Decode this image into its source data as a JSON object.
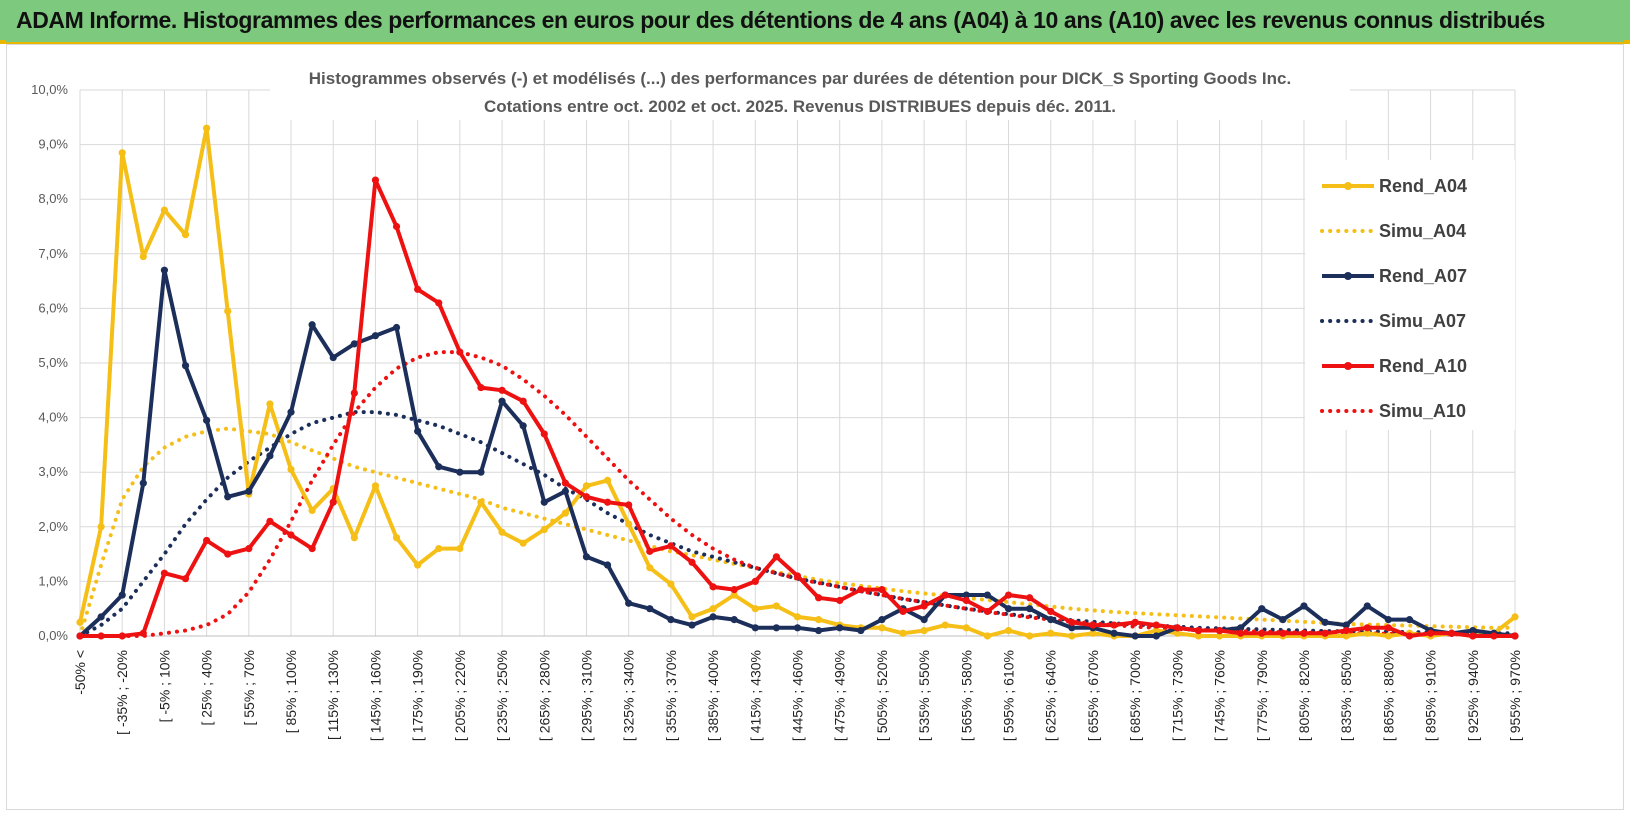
{
  "header": {
    "title": "ADAM Informe. Histogrammes des performances en euros pour des détentions de 4 ans (A04) à 10 ans (A10) avec les revenus connus distribués"
  },
  "colors": {
    "header_bg": "#7dc97e",
    "A04": "#f5bf17",
    "A07": "#1c2e5a",
    "A10": "#ee1111",
    "grid": "#d9d9d9"
  },
  "chart_data": {
    "type": "line",
    "title_lines": [
      "Histogrammes observés (-) et modélisés (...) des performances par durées de détention pour DICK_S Sporting Goods Inc.",
      "Cotations entre oct. 2002 et oct. 2025. Revenus DISTRIBUES depuis déc. 2011."
    ],
    "y_axis": {
      "min": 0,
      "max": 10,
      "step": 1,
      "tick_labels": [
        "0,0%",
        "1,0%",
        "2,0%",
        "3,0%",
        "4,0%",
        "5,0%",
        "6,0%",
        "7,0%",
        "8,0%",
        "9,0%",
        "10,0%"
      ]
    },
    "x_labels": [
      "-50% <",
      "[ -35% ; -20%",
      "[ -5% ; 10%",
      "[ 25% ; 40%",
      "[ 55% ; 70%",
      "[ 85% ; 100%",
      "[ 115% ; 130%",
      "[ 145% ; 160%",
      "[ 175% ; 190%",
      "[ 205% ; 220%",
      "[ 235% ; 250%",
      "[ 265% ; 280%",
      "[ 295% ; 310%",
      "[ 325% ; 340%",
      "[ 355% ; 370%",
      "[ 385% ; 400%",
      "[ 415% ; 430%",
      "[ 445% ; 460%",
      "[ 475% ; 490%",
      "[ 505% ; 520%",
      "[ 535% ; 550%",
      "[ 565% ; 580%",
      "[ 595% ; 610%",
      "[ 625% ; 640%",
      "[ 655% ; 670%",
      "[ 685% ; 700%",
      "[ 715% ; 730%",
      "[ 745% ; 760%",
      "[ 775% ; 790%",
      "[ 805% ; 820%",
      "[ 835% ; 850%",
      "[ 865% ; 880%",
      "[ 895% ; 910%",
      "[ 925% ; 940%",
      "[ 955% ; 970%"
    ],
    "n_bins": 69,
    "grid": true,
    "legend_position": "right",
    "series": [
      {
        "name": "Rend_A04",
        "style": "solid",
        "color": "#f5bf17",
        "values": [
          0.25,
          2.0,
          8.85,
          6.95,
          7.8,
          7.35,
          9.3,
          5.95,
          2.6,
          4.25,
          3.05,
          2.3,
          2.7,
          1.8,
          2.75,
          1.8,
          1.3,
          1.6,
          1.6,
          2.45,
          1.9,
          1.7,
          1.95,
          2.25,
          2.75,
          2.85,
          2.05,
          1.25,
          0.95,
          0.35,
          0.5,
          0.75,
          0.5,
          0.55,
          0.35,
          0.3,
          0.2,
          0.15,
          0.15,
          0.05,
          0.1,
          0.2,
          0.15,
          0.0,
          0.1,
          0.0,
          0.05,
          0.0,
          0.05,
          0.0,
          0.0,
          0.1,
          0.05,
          0.0,
          0.0,
          0.0,
          0.0,
          0.0,
          0.0,
          0.0,
          0.0,
          0.05,
          0.0,
          0.05,
          0.0,
          0.05,
          0.0,
          0.05,
          0.35
        ]
      },
      {
        "name": "Simu_A04",
        "style": "dotted",
        "color": "#f5bf17",
        "values": [
          0.0,
          1.3,
          2.5,
          3.1,
          3.45,
          3.65,
          3.75,
          3.8,
          3.75,
          3.7,
          3.55,
          3.4,
          3.25,
          3.1,
          3.0,
          2.9,
          2.8,
          2.7,
          2.6,
          2.5,
          2.35,
          2.25,
          2.15,
          2.05,
          1.95,
          1.85,
          1.75,
          1.65,
          1.55,
          1.48,
          1.4,
          1.32,
          1.25,
          1.17,
          1.1,
          1.03,
          0.97,
          0.92,
          0.87,
          0.82,
          0.78,
          0.74,
          0.7,
          0.66,
          0.62,
          0.58,
          0.54,
          0.5,
          0.47,
          0.44,
          0.42,
          0.4,
          0.38,
          0.36,
          0.34,
          0.32,
          0.3,
          0.28,
          0.26,
          0.24,
          0.22,
          0.21,
          0.2,
          0.19,
          0.18,
          0.17,
          0.16,
          0.15,
          0.15
        ]
      },
      {
        "name": "Rend_A07",
        "style": "solid",
        "color": "#1c2e5a",
        "values": [
          0.0,
          0.35,
          0.75,
          2.8,
          6.7,
          4.95,
          3.95,
          2.55,
          2.65,
          3.3,
          4.1,
          5.7,
          5.1,
          5.35,
          5.5,
          5.65,
          3.75,
          3.1,
          3.0,
          3.0,
          4.3,
          3.85,
          2.45,
          2.65,
          1.45,
          1.3,
          0.6,
          0.5,
          0.3,
          0.2,
          0.35,
          0.3,
          0.15,
          0.15,
          0.15,
          0.1,
          0.15,
          0.1,
          0.3,
          0.5,
          0.3,
          0.75,
          0.75,
          0.75,
          0.5,
          0.5,
          0.3,
          0.15,
          0.15,
          0.05,
          0.0,
          0.0,
          0.15,
          0.1,
          0.1,
          0.15,
          0.5,
          0.3,
          0.55,
          0.25,
          0.2,
          0.55,
          0.3,
          0.3,
          0.1,
          0.05,
          0.1,
          0.05,
          0.0
        ]
      },
      {
        "name": "Simu_A07",
        "style": "dotted",
        "color": "#1c2e5a",
        "values": [
          0.0,
          0.2,
          0.5,
          1.0,
          1.5,
          2.05,
          2.5,
          2.9,
          3.2,
          3.45,
          3.7,
          3.9,
          4.0,
          4.1,
          4.1,
          4.05,
          3.95,
          3.85,
          3.7,
          3.55,
          3.35,
          3.15,
          2.95,
          2.7,
          2.5,
          2.25,
          2.05,
          1.85,
          1.7,
          1.55,
          1.45,
          1.35,
          1.25,
          1.15,
          1.05,
          0.98,
          0.9,
          0.82,
          0.75,
          0.68,
          0.62,
          0.56,
          0.5,
          0.45,
          0.4,
          0.36,
          0.32,
          0.29,
          0.26,
          0.23,
          0.21,
          0.19,
          0.17,
          0.15,
          0.14,
          0.13,
          0.12,
          0.11,
          0.1,
          0.09,
          0.09,
          0.08,
          0.08,
          0.07,
          0.07,
          0.06,
          0.06,
          0.05,
          0.05
        ]
      },
      {
        "name": "Rend_A10",
        "style": "solid",
        "color": "#ee1111",
        "values": [
          0.0,
          0.0,
          0.0,
          0.05,
          1.15,
          1.05,
          1.75,
          1.5,
          1.6,
          2.1,
          1.85,
          1.6,
          2.45,
          4.45,
          8.35,
          7.5,
          6.35,
          6.1,
          5.2,
          4.55,
          4.5,
          4.3,
          3.7,
          2.8,
          2.55,
          2.45,
          2.4,
          1.55,
          1.65,
          1.35,
          0.9,
          0.85,
          1.0,
          1.45,
          1.1,
          0.7,
          0.65,
          0.85,
          0.85,
          0.45,
          0.55,
          0.75,
          0.65,
          0.45,
          0.75,
          0.7,
          0.45,
          0.25,
          0.2,
          0.2,
          0.25,
          0.2,
          0.15,
          0.1,
          0.1,
          0.05,
          0.05,
          0.05,
          0.05,
          0.05,
          0.1,
          0.15,
          0.15,
          0.0,
          0.05,
          0.05,
          0.0,
          0.0,
          0.0
        ]
      },
      {
        "name": "Simu_A10",
        "style": "dotted",
        "color": "#ee1111",
        "values": [
          0.0,
          0.0,
          0.0,
          0.0,
          0.05,
          0.1,
          0.2,
          0.4,
          0.8,
          1.4,
          2.1,
          2.85,
          3.5,
          4.1,
          4.55,
          4.9,
          5.1,
          5.2,
          5.2,
          5.1,
          4.95,
          4.7,
          4.4,
          4.05,
          3.65,
          3.25,
          2.85,
          2.5,
          2.15,
          1.85,
          1.6,
          1.4,
          1.25,
          1.15,
          1.05,
          0.97,
          0.9,
          0.82,
          0.75,
          0.68,
          0.62,
          0.56,
          0.5,
          0.44,
          0.39,
          0.34,
          0.3,
          0.26,
          0.23,
          0.2,
          0.17,
          0.15,
          0.13,
          0.11,
          0.1,
          0.09,
          0.08,
          0.07,
          0.06,
          0.06,
          0.05,
          0.05,
          0.04,
          0.04,
          0.03,
          0.03,
          0.03,
          0.02,
          0.02
        ]
      }
    ]
  }
}
